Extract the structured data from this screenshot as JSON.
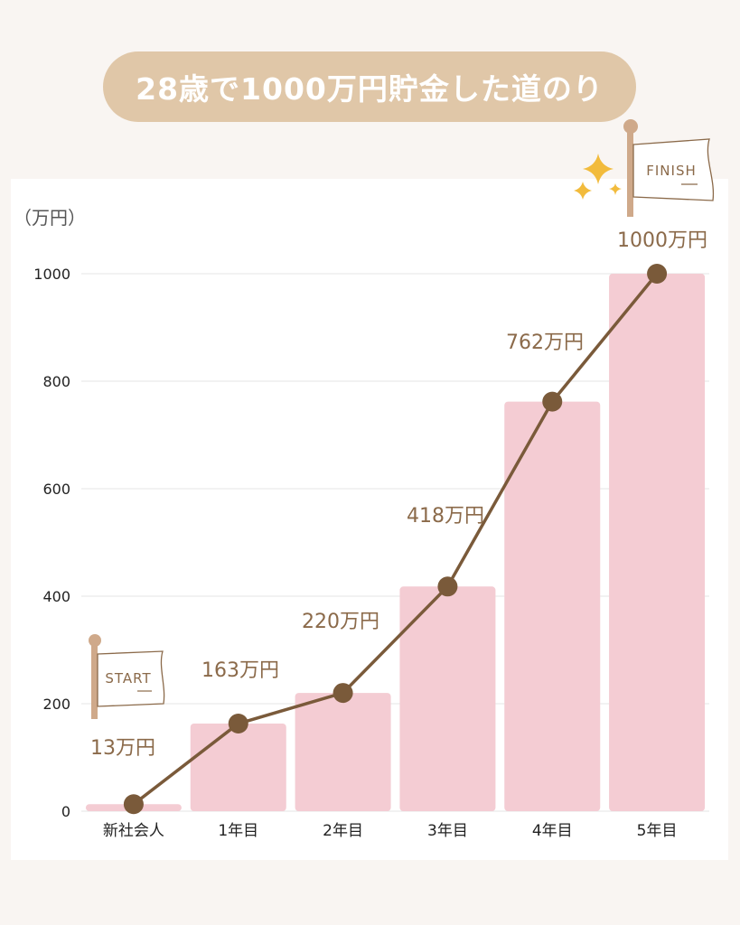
{
  "title": "28歳で1000万円貯金した道のり",
  "unit_label": "（万円）",
  "start_flag": "START",
  "finish_flag": "FINISH",
  "colors": {
    "background": "#f9f5f2",
    "title_pill": "#e0c7a8",
    "bar": "#f4ccd3",
    "line": "#7a5a3a",
    "label": "#8b6a4a",
    "flag_pole": "#cfa98a",
    "sparkle": "#f2bb3c",
    "grid": "#e6e6e6"
  },
  "chart_data": {
    "type": "bar",
    "categories": [
      "新社会人",
      "1年目",
      "2年目",
      "3年目",
      "4年目",
      "5年目"
    ],
    "values": [
      13,
      163,
      220,
      418,
      762,
      1000
    ],
    "data_labels": [
      "13万円",
      "163万円",
      "220万円",
      "418万円",
      "762万円",
      "1000万円"
    ],
    "overlay": "line",
    "yticks": [
      0,
      200,
      400,
      600,
      800,
      1000
    ],
    "ylim": [
      0,
      1000
    ],
    "ylabel": "（万円）",
    "grid": true
  }
}
